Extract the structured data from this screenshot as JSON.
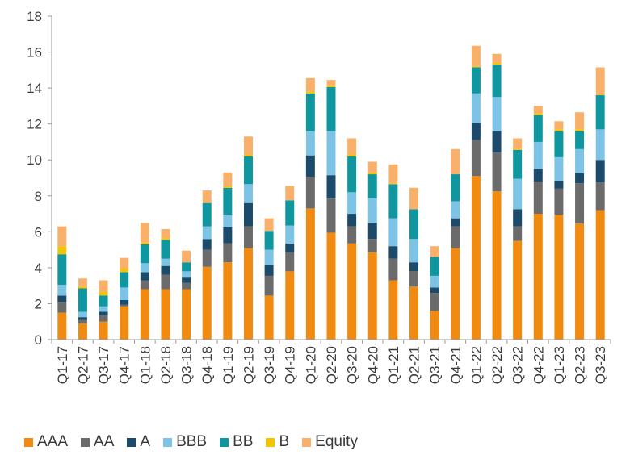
{
  "chart_data": {
    "type": "bar",
    "stacked": true,
    "title": "",
    "xlabel": "",
    "ylabel": "",
    "ylim": [
      0,
      18
    ],
    "yticks": [
      0,
      2,
      4,
      6,
      8,
      10,
      12,
      14,
      16,
      18
    ],
    "grid": false,
    "legend_position": "bottom",
    "categories": [
      "Q1-17",
      "Q2-17",
      "Q3-17",
      "Q4-17",
      "Q1-18",
      "Q2-18",
      "Q3-18",
      "Q4-18",
      "Q1-19",
      "Q2-19",
      "Q3-19",
      "Q4-19",
      "Q1-20",
      "Q2-20",
      "Q3-20",
      "Q4-20",
      "Q1-21",
      "Q2-21",
      "Q3-21",
      "Q4-21",
      "Q1-22",
      "Q2-22",
      "Q3-22",
      "Q4-22",
      "Q1-23",
      "Q2-23",
      "Q3-23"
    ],
    "series": [
      {
        "name": "AAA",
        "color": "#f08a10",
        "values": [
          1.5,
          0.9,
          1.0,
          1.85,
          2.8,
          2.8,
          2.8,
          4.05,
          4.3,
          5.1,
          2.45,
          3.8,
          7.3,
          5.95,
          5.35,
          4.85,
          3.3,
          2.95,
          1.6,
          5.1,
          9.1,
          8.25,
          5.5,
          7.0,
          6.95,
          6.45,
          7.2
        ]
      },
      {
        "name": "AA",
        "color": "#6b6b6b",
        "values": [
          0.6,
          0.2,
          0.35,
          0.1,
          0.5,
          0.8,
          0.35,
          0.95,
          1.05,
          1.2,
          1.1,
          1.05,
          1.75,
          1.9,
          0.95,
          0.75,
          1.2,
          0.85,
          1.0,
          1.2,
          2.0,
          2.15,
          0.8,
          1.8,
          1.45,
          2.25,
          1.55
        ]
      },
      {
        "name": "A",
        "color": "#1b4a6b",
        "values": [
          0.35,
          0.15,
          0.2,
          0.25,
          0.45,
          0.5,
          0.3,
          0.6,
          0.9,
          1.3,
          0.6,
          0.5,
          1.2,
          1.3,
          0.7,
          0.9,
          0.7,
          0.5,
          0.3,
          0.45,
          0.95,
          1.2,
          0.95,
          0.7,
          0.45,
          0.55,
          1.25
        ]
      },
      {
        "name": "BBB",
        "color": "#7cc3e6",
        "values": [
          0.6,
          0.3,
          0.3,
          0.7,
          0.5,
          0.4,
          0.35,
          0.7,
          0.7,
          1.05,
          0.85,
          1.0,
          1.35,
          2.45,
          1.2,
          1.35,
          1.55,
          1.3,
          0.65,
          0.95,
          1.65,
          1.9,
          1.7,
          1.5,
          1.3,
          1.35,
          1.7
        ]
      },
      {
        "name": "BB",
        "color": "#10969e",
        "values": [
          1.7,
          1.3,
          0.6,
          0.85,
          1.05,
          1.05,
          0.5,
          1.3,
          1.5,
          1.55,
          1.05,
          1.4,
          2.1,
          2.45,
          2.0,
          1.35,
          1.9,
          1.65,
          1.05,
          1.5,
          1.45,
          1.8,
          1.6,
          1.5,
          1.45,
          1.0,
          1.9
        ]
      },
      {
        "name": "B",
        "color": "#f5c400",
        "values": [
          0.45,
          0.1,
          0.2,
          0.2,
          0.1,
          0.1,
          0.0,
          0.0,
          0.1,
          0.1,
          0.0,
          0.0,
          0.1,
          0.1,
          0.1,
          0.1,
          0.05,
          0.0,
          0.0,
          0.0,
          0.05,
          0.1,
          0.05,
          0.1,
          0.1,
          0.1,
          0.05
        ]
      },
      {
        "name": "Equity",
        "color": "#f9b06a",
        "values": [
          1.1,
          0.45,
          0.65,
          0.6,
          1.1,
          0.5,
          0.65,
          0.7,
          0.75,
          1.0,
          0.7,
          0.8,
          0.75,
          0.3,
          0.9,
          0.6,
          1.05,
          1.2,
          0.6,
          1.4,
          1.15,
          0.5,
          0.6,
          0.4,
          0.45,
          0.95,
          1.5
        ]
      }
    ]
  }
}
